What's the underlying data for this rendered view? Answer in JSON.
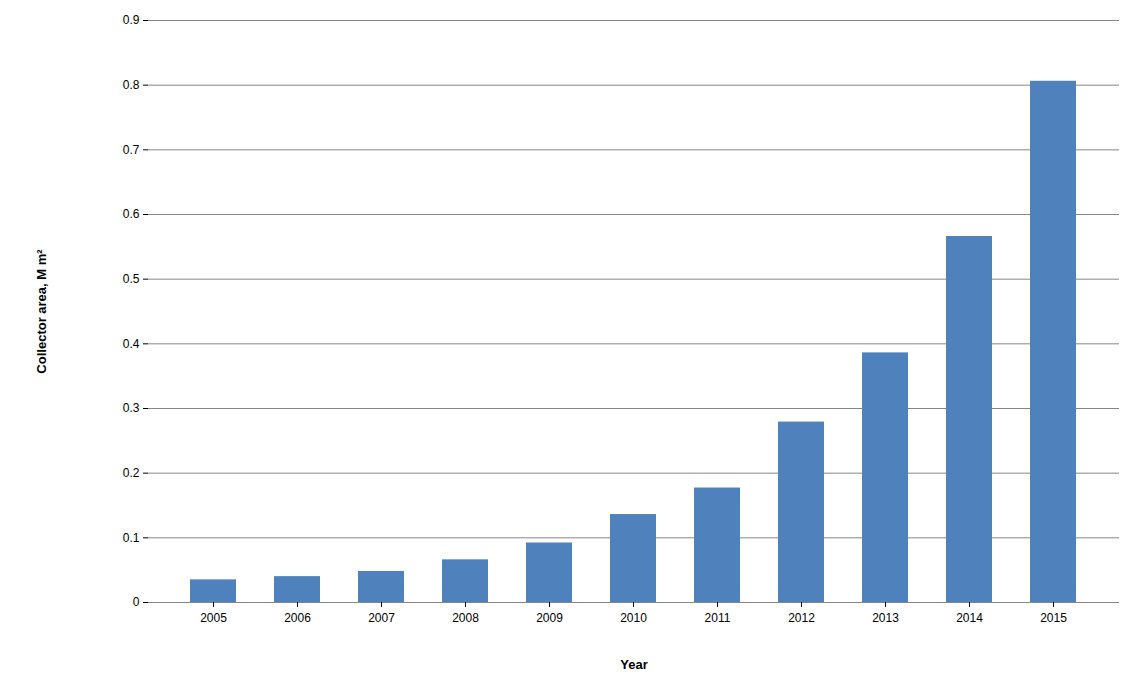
{
  "chart_data": {
    "type": "bar",
    "x_label": "Year",
    "y_label": "Collector area, M m²",
    "categories": [
      "2005",
      "2006",
      "2007",
      "2008",
      "2009",
      "2010",
      "2011",
      "2012",
      "2013",
      "2014",
      "2015"
    ],
    "values": [
      0.035,
      0.04,
      0.048,
      0.066,
      0.092,
      0.136,
      0.177,
      0.279,
      0.386,
      0.566,
      0.806
    ],
    "color": "#4f81bd",
    "ylim": [
      0,
      0.9
    ],
    "yticks": [
      0,
      0.1,
      0.2,
      0.3,
      0.4,
      0.5,
      0.6,
      0.7,
      0.8,
      0.9
    ],
    "grid": true
  }
}
